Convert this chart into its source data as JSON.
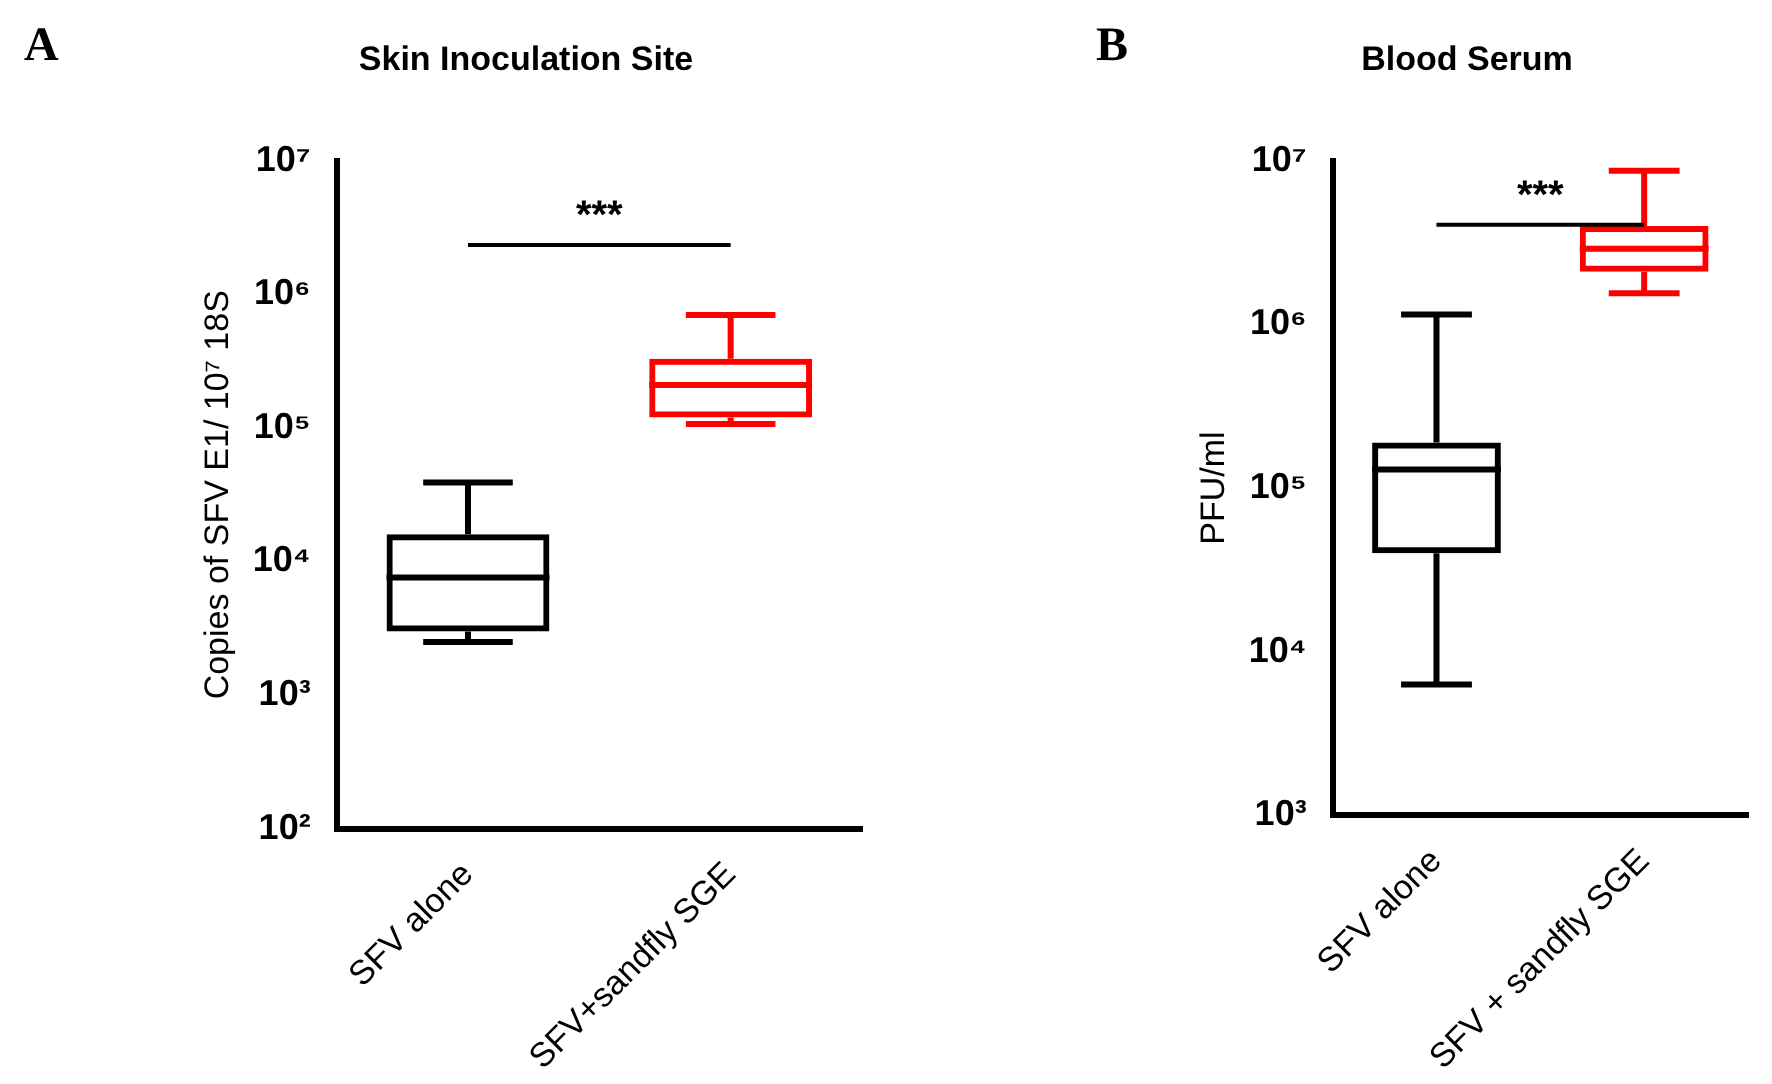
{
  "chart_data": [
    {
      "type": "box",
      "title": "Skin Inoculation Site",
      "ylabel": "Copies of SFV E1/ 10⁷ 18S",
      "annotations": [
        "A",
        "***"
      ],
      "categories": [
        "SFV alone",
        "SFV+sandfly SGE"
      ],
      "colors": [
        "#000000",
        "#ff0000"
      ],
      "boxes": [
        {
          "low": 2500,
          "q1": 3000,
          "median": 7600,
          "q3": 16000,
          "high": 39000
        },
        {
          "low": 107000,
          "q1": 120000,
          "median": 210000,
          "q3": 330000,
          "high": 700000
        }
      ],
      "log": true,
      "ylim": [
        100,
        10000000
      ],
      "yticks": [
        {
          "value": 100,
          "label": "10²"
        },
        {
          "value": 1000,
          "label": "10³"
        },
        {
          "value": 10000,
          "label": "10⁴"
        },
        {
          "value": 100000,
          "label": "10⁵"
        },
        {
          "value": 1000000,
          "label": "10⁶"
        },
        {
          "value": 10000000,
          "label": "10⁷"
        }
      ],
      "grid": false,
      "legend": false
    },
    {
      "type": "box",
      "title": "Blood Serum",
      "ylabel": "PFU/ml",
      "annotations": [
        "B",
        "***"
      ],
      "categories": [
        "SFV alone",
        "SFV + sandfly SGE"
      ],
      "colors": [
        "#000000",
        "#ff0000"
      ],
      "boxes": [
        {
          "low": 6300,
          "q1": 40000,
          "median": 130000,
          "q3": 190000,
          "high": 1150000
        },
        {
          "low": 1550000,
          "q1": 2100000,
          "median": 2900000,
          "q3": 4000000,
          "high": 8700000
        }
      ],
      "log": true,
      "ylim": [
        1000,
        10000000
      ],
      "yticks": [
        {
          "value": 1000,
          "label": "10³"
        },
        {
          "value": 10000,
          "label": "10⁴"
        },
        {
          "value": 100000,
          "label": "10⁵"
        },
        {
          "value": 1000000,
          "label": "10⁶"
        },
        {
          "value": 10000000,
          "label": "10⁷"
        }
      ],
      "grid": false,
      "legend": false
    }
  ]
}
